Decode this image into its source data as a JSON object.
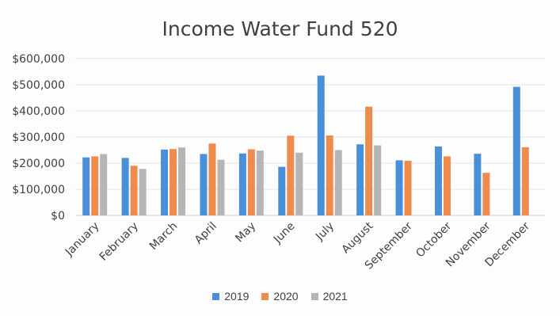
{
  "chart_data": {
    "type": "bar",
    "title": "Income Water Fund 520",
    "xlabel": "",
    "ylabel": "",
    "ylim": [
      0,
      600000
    ],
    "y_ticks": [
      0,
      100000,
      200000,
      300000,
      400000,
      500000,
      600000
    ],
    "y_tick_labels": [
      "$0",
      "$100,000",
      "$200,000",
      "$300,000",
      "$400,000",
      "$500,000",
      "$600,000"
    ],
    "grid": true,
    "legend_position": "bottom",
    "categories": [
      "January",
      "February",
      "March",
      "April",
      "May",
      "June",
      "July",
      "August",
      "September",
      "October",
      "November",
      "December"
    ],
    "series": [
      {
        "name": "2019",
        "color": "#4a90d9",
        "values": [
          222000,
          220000,
          252000,
          235000,
          237000,
          186000,
          535000,
          272000,
          211000,
          264000,
          236000,
          492000
        ]
      },
      {
        "name": "2020",
        "color": "#ef8c4d",
        "values": [
          226000,
          190000,
          254000,
          275000,
          253000,
          305000,
          306000,
          416000,
          209000,
          226000,
          163000,
          261000
        ]
      },
      {
        "name": "2021",
        "color": "#b5b5b5",
        "values": [
          235000,
          178000,
          260000,
          213000,
          248000,
          240000,
          250000,
          268000,
          null,
          null,
          null,
          null
        ]
      }
    ]
  }
}
